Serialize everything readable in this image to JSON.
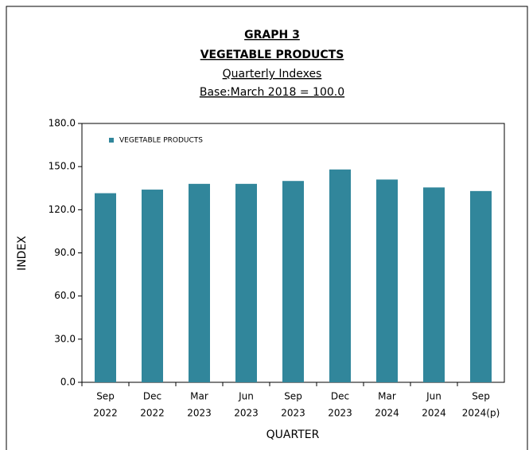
{
  "chart_data": {
    "type": "bar",
    "title": "GRAPH  3",
    "subtitle": "VEGETABLE  PRODUCTS",
    "subtitle2": "Quarterly Indexes",
    "subtitle3": "Base:March 2018 = 100.0",
    "x_label": "QUARTER",
    "y_label": "INDEX",
    "categories": [
      [
        "Sep",
        "2022"
      ],
      [
        "Dec",
        "2022"
      ],
      [
        "Mar",
        "2023"
      ],
      [
        "Jun",
        "2023"
      ],
      [
        "Sep",
        "2023"
      ],
      [
        "Dec",
        "2023"
      ],
      [
        "Mar",
        "2024"
      ],
      [
        "Jun",
        "2024"
      ],
      [
        "Sep",
        "2024(p)"
      ]
    ],
    "series": [
      {
        "name": "VEGETABLE PRODUCTS",
        "color": "#31869b",
        "values": [
          131.5,
          134,
          138,
          138,
          140,
          148,
          141,
          135.5,
          133
        ]
      }
    ],
    "ylim": [
      0,
      180
    ],
    "yticks": [
      {
        "value": 0,
        "label": "0.0"
      },
      {
        "value": 30,
        "label": "30.0"
      },
      {
        "value": 60,
        "label": "60.0"
      },
      {
        "value": 90,
        "label": "90.0"
      },
      {
        "value": 120,
        "label": "120.0"
      },
      {
        "value": 150,
        "label": "150.0"
      },
      {
        "value": 180,
        "label": "180.0"
      }
    ],
    "grid": false,
    "legend": "upper left"
  }
}
